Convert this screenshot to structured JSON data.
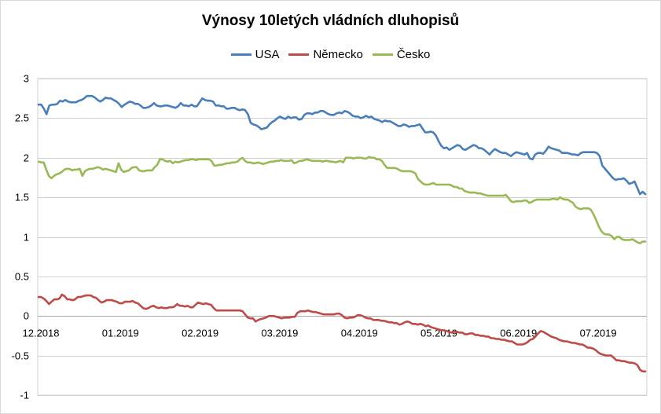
{
  "chart_data": {
    "type": "line",
    "title": "Výnosy 10letých vládních dluhopisů",
    "x_tick_labels": [
      "12.2018",
      "01.2019",
      "02.2019",
      "03.2019",
      "04.2019",
      "05.2019",
      "06.2019",
      "07.2019"
    ],
    "y_tick_labels": [
      "-1",
      "-0.5",
      "0",
      "0.5",
      "1",
      "1.5",
      "2",
      "2.5",
      "3"
    ],
    "ylim": [
      -1,
      3
    ],
    "grid": "horizontal",
    "legend_position": "top",
    "series": [
      {
        "name": "USA",
        "color": "#4a7ebb",
        "values": [
          2.67,
          2.67,
          2.62,
          2.55,
          2.66,
          2.67,
          2.67,
          2.68,
          2.72,
          2.71,
          2.73,
          2.71,
          2.7,
          2.7,
          2.7,
          2.72,
          2.73,
          2.75,
          2.78,
          2.78,
          2.78,
          2.76,
          2.73,
          2.71,
          2.73,
          2.76,
          2.75,
          2.75,
          2.73,
          2.71,
          2.68,
          2.64,
          2.67,
          2.69,
          2.71,
          2.7,
          2.68,
          2.68,
          2.66,
          2.63,
          2.63,
          2.64,
          2.66,
          2.69,
          2.66,
          2.65,
          2.65,
          2.66,
          2.66,
          2.65,
          2.64,
          2.63,
          2.65,
          2.69,
          2.66,
          2.66,
          2.65,
          2.67,
          2.65,
          2.65,
          2.7,
          2.75,
          2.73,
          2.72,
          2.72,
          2.71,
          2.66,
          2.66,
          2.65,
          2.65,
          2.62,
          2.62,
          2.63,
          2.63,
          2.61,
          2.6,
          2.61,
          2.6,
          2.55,
          2.44,
          2.42,
          2.41,
          2.39,
          2.36,
          2.37,
          2.38,
          2.42,
          2.45,
          2.47,
          2.5,
          2.52,
          2.5,
          2.49,
          2.52,
          2.5,
          2.51,
          2.51,
          2.48,
          2.49,
          2.54,
          2.56,
          2.56,
          2.55,
          2.57,
          2.57,
          2.59,
          2.59,
          2.57,
          2.55,
          2.54,
          2.54,
          2.56,
          2.57,
          2.56,
          2.59,
          2.58,
          2.56,
          2.53,
          2.52,
          2.52,
          2.5,
          2.51,
          2.53,
          2.51,
          2.52,
          2.49,
          2.48,
          2.47,
          2.45,
          2.47,
          2.46,
          2.46,
          2.44,
          2.42,
          2.4,
          2.4,
          2.42,
          2.41,
          2.39,
          2.4,
          2.4,
          2.41,
          2.42,
          2.37,
          2.32,
          2.32,
          2.33,
          2.32,
          2.28,
          2.21,
          2.15,
          2.12,
          2.13,
          2.1,
          2.12,
          2.14,
          2.16,
          2.15,
          2.11,
          2.1,
          2.12,
          2.14,
          2.16,
          2.15,
          2.12,
          2.12,
          2.1,
          2.07,
          2.04,
          2.08,
          2.11,
          2.09,
          2.07,
          2.06,
          2.06,
          2.04,
          2.02,
          2.05,
          2.07,
          2.06,
          2.05,
          2.04,
          2.06,
          1.99,
          1.98,
          2.04,
          2.06,
          2.06,
          2.05,
          2.09,
          2.14,
          2.12,
          2.11,
          2.1,
          2.09,
          2.06,
          2.06,
          2.06,
          2.05,
          2.04,
          2.04,
          2.03,
          2.06,
          2.07,
          2.07,
          2.07,
          2.07,
          2.07,
          2.06,
          2.02,
          1.9,
          1.86,
          1.82,
          1.78,
          1.74,
          1.72,
          1.73,
          1.73,
          1.74,
          1.71,
          1.67,
          1.68,
          1.7,
          1.62,
          1.54,
          1.57,
          1.54
        ]
      },
      {
        "name": "Německo",
        "color": "#be4b48",
        "values": [
          0.24,
          0.24,
          0.22,
          0.19,
          0.15,
          0.18,
          0.21,
          0.21,
          0.22,
          0.27,
          0.25,
          0.21,
          0.21,
          0.2,
          0.21,
          0.24,
          0.24,
          0.25,
          0.26,
          0.26,
          0.26,
          0.24,
          0.23,
          0.2,
          0.17,
          0.18,
          0.2,
          0.2,
          0.2,
          0.19,
          0.18,
          0.16,
          0.16,
          0.18,
          0.18,
          0.18,
          0.19,
          0.17,
          0.16,
          0.13,
          0.1,
          0.09,
          0.1,
          0.12,
          0.13,
          0.11,
          0.1,
          0.11,
          0.1,
          0.1,
          0.11,
          0.11,
          0.12,
          0.15,
          0.13,
          0.13,
          0.12,
          0.13,
          0.11,
          0.11,
          0.14,
          0.17,
          0.16,
          0.15,
          0.16,
          0.15,
          0.14,
          0.1,
          0.07,
          0.07,
          0.07,
          0.07,
          0.07,
          0.07,
          0.07,
          0.07,
          0.07,
          0.07,
          0.06,
          0.02,
          -0.02,
          -0.03,
          -0.03,
          -0.07,
          -0.05,
          -0.04,
          -0.03,
          -0.02,
          0.0,
          0.0,
          0.0,
          -0.01,
          -0.02,
          -0.03,
          -0.02,
          -0.02,
          -0.02,
          -0.01,
          -0.01,
          0.04,
          0.06,
          0.06,
          0.06,
          0.07,
          0.06,
          0.05,
          0.05,
          0.04,
          0.03,
          0.02,
          0.02,
          0.02,
          0.02,
          0.02,
          0.03,
          0.03,
          0.01,
          -0.02,
          -0.03,
          -0.02,
          -0.02,
          -0.01,
          0.01,
          0.01,
          0.0,
          -0.02,
          -0.03,
          -0.03,
          -0.05,
          -0.05,
          -0.05,
          -0.06,
          -0.06,
          -0.07,
          -0.08,
          -0.08,
          -0.09,
          -0.09,
          -0.11,
          -0.1,
          -0.08,
          -0.07,
          -0.08,
          -0.1,
          -0.1,
          -0.11,
          -0.1,
          -0.11,
          -0.13,
          -0.12,
          -0.14,
          -0.15,
          -0.16,
          -0.17,
          -0.18,
          -0.18,
          -0.19,
          -0.2,
          -0.21,
          -0.2,
          -0.2,
          -0.21,
          -0.21,
          -0.23,
          -0.23,
          -0.22,
          -0.22,
          -0.24,
          -0.24,
          -0.25,
          -0.25,
          -0.26,
          -0.26,
          -0.28,
          -0.28,
          -0.29,
          -0.29,
          -0.3,
          -0.3,
          -0.31,
          -0.32,
          -0.32,
          -0.34,
          -0.36,
          -0.36,
          -0.36,
          -0.35,
          -0.33,
          -0.3,
          -0.29,
          -0.26,
          -0.22,
          -0.19,
          -0.2,
          -0.22,
          -0.24,
          -0.26,
          -0.27,
          -0.28,
          -0.3,
          -0.31,
          -0.32,
          -0.32,
          -0.33,
          -0.34,
          -0.34,
          -0.35,
          -0.36,
          -0.36,
          -0.38,
          -0.4,
          -0.4,
          -0.41,
          -0.43,
          -0.46,
          -0.48,
          -0.49,
          -0.5,
          -0.5,
          -0.5,
          -0.53,
          -0.56,
          -0.56,
          -0.57,
          -0.57,
          -0.58,
          -0.59,
          -0.59,
          -0.6,
          -0.62,
          -0.68,
          -0.7,
          -0.7
        ]
      },
      {
        "name": "Česko",
        "color": "#98b954",
        "values": [
          1.95,
          1.94,
          1.94,
          1.85,
          1.77,
          1.74,
          1.77,
          1.79,
          1.8,
          1.82,
          1.85,
          1.86,
          1.86,
          1.84,
          1.85,
          1.85,
          1.86,
          1.77,
          1.83,
          1.85,
          1.86,
          1.86,
          1.87,
          1.88,
          1.87,
          1.85,
          1.86,
          1.85,
          1.84,
          1.83,
          1.82,
          1.93,
          1.85,
          1.82,
          1.83,
          1.84,
          1.87,
          1.88,
          1.88,
          1.84,
          1.83,
          1.83,
          1.84,
          1.84,
          1.84,
          1.88,
          1.91,
          1.98,
          1.98,
          1.96,
          1.95,
          1.96,
          1.93,
          1.95,
          1.94,
          1.95,
          1.96,
          1.97,
          1.97,
          1.98,
          1.98,
          1.97,
          1.98,
          1.98,
          1.98,
          1.98,
          1.98,
          1.96,
          1.9,
          1.9,
          1.91,
          1.91,
          1.92,
          1.93,
          1.93,
          1.94,
          1.94,
          1.95,
          1.98,
          2.0,
          1.96,
          1.94,
          1.94,
          1.93,
          1.93,
          1.94,
          1.93,
          1.92,
          1.93,
          1.94,
          1.95,
          1.95,
          1.96,
          1.96,
          1.97,
          1.96,
          1.96,
          1.96,
          1.97,
          1.93,
          1.94,
          1.96,
          1.96,
          1.97,
          1.98,
          1.97,
          1.96,
          1.96,
          1.96,
          1.96,
          1.95,
          1.96,
          1.96,
          1.95,
          1.95,
          1.94,
          1.95,
          1.96,
          1.94,
          2.0,
          2.0,
          2.0,
          1.99,
          2.0,
          2.0,
          2.0,
          1.99,
          1.99,
          2.01,
          2.0,
          2.0,
          1.98,
          1.98,
          1.96,
          1.91,
          1.87,
          1.87,
          1.87,
          1.87,
          1.86,
          1.84,
          1.83,
          1.83,
          1.83,
          1.83,
          1.82,
          1.8,
          1.73,
          1.7,
          1.67,
          1.66,
          1.66,
          1.67,
          1.68,
          1.66,
          1.66,
          1.66,
          1.66,
          1.66,
          1.66,
          1.65,
          1.63,
          1.63,
          1.61,
          1.61,
          1.58,
          1.57,
          1.56,
          1.56,
          1.56,
          1.55,
          1.55,
          1.54,
          1.53,
          1.52,
          1.52,
          1.52,
          1.52,
          1.52,
          1.52,
          1.52,
          1.53,
          1.49,
          1.45,
          1.44,
          1.45,
          1.45,
          1.45,
          1.46,
          1.46,
          1.43,
          1.44,
          1.46,
          1.47,
          1.47,
          1.47,
          1.47,
          1.47,
          1.47,
          1.48,
          1.48,
          1.47,
          1.5,
          1.48,
          1.47,
          1.47,
          1.45,
          1.43,
          1.38,
          1.36,
          1.35,
          1.36,
          1.36,
          1.36,
          1.34,
          1.28,
          1.21,
          1.13,
          1.07,
          1.04,
          1.03,
          1.03,
          1.01,
          0.97,
          1.0,
          1.0,
          0.97,
          0.96,
          0.96,
          0.96,
          0.97,
          0.95,
          0.93,
          0.92,
          0.94,
          0.94
        ]
      }
    ]
  }
}
